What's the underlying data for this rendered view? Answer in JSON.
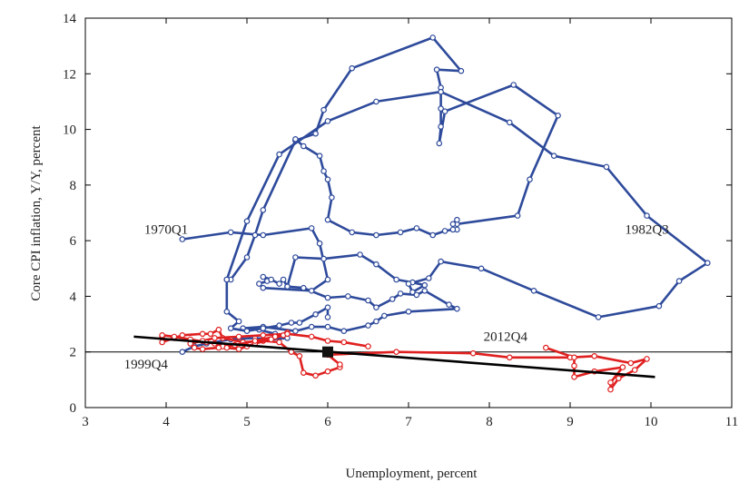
{
  "chart_data": {
    "type": "line",
    "xlabel": "Unemployment, percent",
    "ylabel": "Core CPI inflation, Y/Y, percent",
    "xlim": [
      3,
      11
    ],
    "ylim": [
      0,
      14
    ],
    "x_ticks": [
      3,
      4,
      5,
      6,
      7,
      8,
      9,
      10,
      11
    ],
    "y_ticks": [
      0,
      2,
      4,
      6,
      8,
      10,
      12,
      14
    ],
    "grid": false,
    "reference_line_y": 2,
    "colors": {
      "early": "#2e4a9b",
      "late": "#e02020",
      "fit": "#000000",
      "target": "#111111"
    },
    "annotations": [
      {
        "text": "1970Q1",
        "x": 4.0,
        "y": 6.25
      },
      {
        "text": "1982Q3",
        "x": 9.95,
        "y": 6.25
      },
      {
        "text": "1999Q4",
        "x": 3.75,
        "y": 1.4
      },
      {
        "text": "2012Q4",
        "x": 8.2,
        "y": 2.4
      }
    ],
    "series": [
      {
        "points": [
          [
            4.2,
            6.05
          ],
          [
            4.8,
            6.3
          ],
          [
            5.2,
            6.2
          ],
          [
            5.8,
            6.45
          ],
          [
            5.9,
            5.9
          ],
          [
            6.0,
            4.6
          ],
          [
            5.8,
            4.2
          ],
          [
            5.2,
            4.3
          ],
          [
            5.15,
            4.45
          ],
          [
            5.25,
            4.55
          ],
          [
            5.2,
            4.7
          ],
          [
            5.3,
            4.6
          ],
          [
            5.4,
            4.45
          ],
          [
            5.45,
            4.6
          ],
          [
            5.5,
            4.35
          ],
          [
            5.7,
            4.3
          ],
          [
            6.0,
            3.95
          ],
          [
            6.25,
            4.0
          ],
          [
            6.5,
            3.85
          ],
          [
            6.6,
            3.6
          ],
          [
            6.8,
            3.9
          ],
          [
            6.9,
            4.1
          ],
          [
            7.1,
            4.05
          ],
          [
            7.2,
            4.2
          ],
          [
            7.5,
            3.7
          ],
          [
            7.6,
            3.55
          ],
          [
            7.0,
            3.45
          ],
          [
            6.7,
            3.3
          ],
          [
            6.6,
            3.1
          ],
          [
            6.5,
            2.95
          ],
          [
            6.2,
            2.75
          ],
          [
            6.0,
            2.9
          ],
          [
            5.8,
            2.9
          ],
          [
            5.6,
            2.75
          ],
          [
            5.2,
            2.9
          ],
          [
            4.95,
            2.85
          ],
          [
            5.15,
            2.8
          ],
          [
            5.35,
            2.65
          ],
          [
            5.5,
            2.5
          ],
          [
            5.3,
            2.45
          ],
          [
            5.1,
            2.5
          ],
          [
            4.8,
            2.45
          ],
          [
            4.5,
            2.3
          ],
          [
            4.35,
            2.2
          ],
          [
            4.2,
            2.0
          ]
        ]
      },
      {
        "points": [
          [
            4.8,
            4.6
          ],
          [
            5.0,
            5.4
          ],
          [
            5.1,
            6.2
          ],
          [
            5.2,
            7.1
          ],
          [
            5.6,
            9.6
          ],
          [
            5.85,
            9.85
          ],
          [
            5.95,
            10.7
          ],
          [
            6.3,
            12.2
          ],
          [
            7.3,
            13.3
          ],
          [
            7.65,
            12.1
          ],
          [
            7.35,
            12.15
          ],
          [
            7.4,
            11.5
          ],
          [
            7.4,
            10.75
          ],
          [
            7.4,
            10.1
          ],
          [
            7.38,
            9.5
          ],
          [
            7.45,
            10.65
          ],
          [
            8.3,
            11.6
          ],
          [
            8.85,
            10.5
          ],
          [
            8.5,
            8.2
          ],
          [
            8.35,
            6.9
          ],
          [
            7.6,
            6.6
          ],
          [
            7.6,
            6.4
          ],
          [
            7.6,
            6.75
          ],
          [
            7.55,
            6.6
          ],
          [
            7.55,
            6.4
          ],
          [
            7.45,
            6.35
          ],
          [
            7.3,
            6.2
          ],
          [
            7.1,
            6.45
          ],
          [
            6.9,
            6.3
          ],
          [
            6.6,
            6.2
          ],
          [
            6.3,
            6.3
          ],
          [
            6.0,
            6.75
          ],
          [
            6.05,
            7.55
          ],
          [
            6.0,
            8.2
          ],
          [
            5.95,
            8.5
          ],
          [
            5.9,
            9.05
          ],
          [
            5.7,
            9.4
          ],
          [
            5.6,
            9.65
          ]
        ]
      },
      {
        "points": [
          [
            5.5,
            4.35
          ],
          [
            5.6,
            5.4
          ],
          [
            5.95,
            5.35
          ],
          [
            6.4,
            5.5
          ],
          [
            6.6,
            5.15
          ],
          [
            6.85,
            4.6
          ],
          [
            7.05,
            4.5
          ],
          [
            7.2,
            4.4
          ],
          [
            7.05,
            4.15
          ],
          [
            7.0,
            4.45
          ],
          [
            7.25,
            4.65
          ],
          [
            7.4,
            5.25
          ],
          [
            7.9,
            5.0
          ],
          [
            8.55,
            4.2
          ],
          [
            9.35,
            3.25
          ],
          [
            10.1,
            3.65
          ],
          [
            10.35,
            4.55
          ],
          [
            10.7,
            5.2
          ],
          [
            9.95,
            6.9
          ],
          [
            9.45,
            8.65
          ],
          [
            8.8,
            9.05
          ],
          [
            8.25,
            10.25
          ],
          [
            7.4,
            11.35
          ],
          [
            6.6,
            11.0
          ],
          [
            6.0,
            10.3
          ],
          [
            5.4,
            9.1
          ],
          [
            5.0,
            6.7
          ],
          [
            4.75,
            4.6
          ]
        ]
      },
      {
        "points": [
          [
            4.75,
            4.6
          ],
          [
            4.75,
            3.45
          ],
          [
            4.9,
            3.1
          ],
          [
            4.8,
            2.85
          ],
          [
            5.0,
            2.75
          ],
          [
            5.2,
            2.85
          ],
          [
            5.4,
            2.95
          ],
          [
            5.55,
            3.05
          ],
          [
            5.65,
            3.05
          ],
          [
            5.85,
            3.35
          ],
          [
            6.0,
            3.6
          ],
          [
            6.0,
            3.25
          ]
        ]
      },
      {
        "points": [
          [
            3.95,
            2.55
          ],
          [
            3.95,
            2.35
          ],
          [
            4.1,
            2.5
          ],
          [
            4.2,
            2.6
          ],
          [
            4.45,
            2.65
          ],
          [
            4.55,
            2.65
          ],
          [
            4.65,
            2.8
          ],
          [
            4.7,
            2.5
          ],
          [
            4.95,
            2.35
          ],
          [
            5.2,
            2.4
          ],
          [
            5.4,
            2.35
          ],
          [
            5.55,
            2.0
          ],
          [
            5.65,
            1.85
          ],
          [
            5.7,
            1.25
          ],
          [
            5.85,
            1.15
          ],
          [
            6.0,
            1.3
          ],
          [
            6.15,
            1.45
          ],
          [
            6.15,
            1.55
          ],
          [
            6.0,
            1.9
          ],
          [
            6.85,
            2.0
          ],
          [
            7.8,
            1.95
          ],
          [
            8.25,
            1.8
          ],
          [
            9.0,
            1.8
          ],
          [
            9.3,
            1.85
          ],
          [
            9.75,
            1.6
          ],
          [
            9.95,
            1.75
          ],
          [
            9.8,
            1.35
          ],
          [
            9.6,
            1.05
          ],
          [
            9.5,
            0.65
          ],
          [
            9.5,
            0.9
          ],
          [
            9.65,
            1.45
          ],
          [
            9.3,
            1.3
          ],
          [
            9.05,
            1.1
          ],
          [
            9.05,
            1.5
          ],
          [
            9.05,
            1.8
          ],
          [
            8.7,
            2.15
          ]
        ]
      },
      {
        "points": [
          [
            3.95,
            2.6
          ],
          [
            4.1,
            2.55
          ],
          [
            4.3,
            2.45
          ],
          [
            4.5,
            2.35
          ],
          [
            4.6,
            2.3
          ],
          [
            4.7,
            2.2
          ],
          [
            4.75,
            2.15
          ],
          [
            4.9,
            2.1
          ],
          [
            5.0,
            2.2
          ],
          [
            5.1,
            2.3
          ],
          [
            5.3,
            2.45
          ],
          [
            5.45,
            2.6
          ],
          [
            5.5,
            2.7
          ],
          [
            5.35,
            2.55
          ],
          [
            5.1,
            2.4
          ],
          [
            4.85,
            2.25
          ],
          [
            4.65,
            2.15
          ],
          [
            4.45,
            2.1
          ],
          [
            4.35,
            2.15
          ],
          [
            4.3,
            2.3
          ],
          [
            4.45,
            2.4
          ],
          [
            4.6,
            2.5
          ],
          [
            4.9,
            2.55
          ],
          [
            5.2,
            2.6
          ],
          [
            5.5,
            2.65
          ],
          [
            5.8,
            2.55
          ],
          [
            6.0,
            2.4
          ],
          [
            6.2,
            2.35
          ],
          [
            6.5,
            2.2
          ]
        ]
      }
    ],
    "fit_line": [
      [
        3.6,
        2.55
      ],
      [
        10.05,
        1.1
      ]
    ],
    "target_point": [
      6.0,
      2.0
    ]
  }
}
